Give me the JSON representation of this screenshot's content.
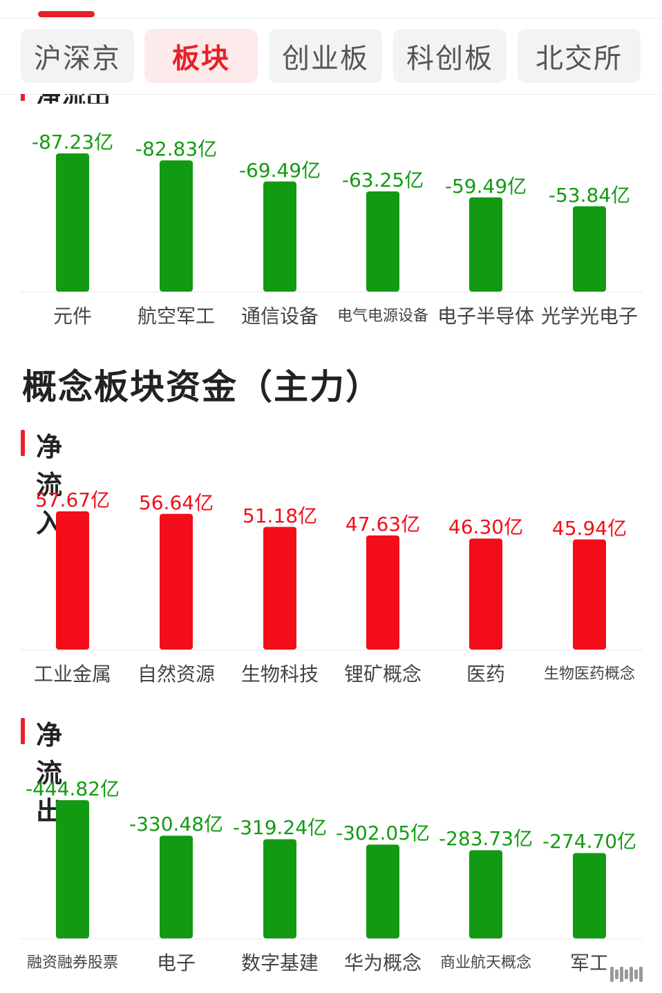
{
  "tabs": [
    {
      "label": "沪深京",
      "active": false
    },
    {
      "label": "板块",
      "active": true
    },
    {
      "label": "创业板",
      "active": false
    },
    {
      "label": "科创板",
      "active": false
    },
    {
      "label": "北交所",
      "active": false
    }
  ],
  "clipped_heading": "净流出",
  "section_title": "概念板块资金（主力）",
  "inflow_heading": "净流入",
  "outflow_heading": "净流出",
  "colors": {
    "inflow": "#f20d18",
    "outflow": "#129a12",
    "accent": "#e8202a"
  },
  "chart_data": [
    {
      "type": "bar",
      "categories": [
        "元件",
        "航空军工",
        "通信设备",
        "电气电源设备",
        "电子半导体",
        "光学光电子"
      ],
      "values": [
        -87.23,
        -82.83,
        -69.49,
        -63.25,
        -59.49,
        -53.84
      ],
      "labels": [
        "-87.23亿",
        "-82.83亿",
        "-69.49亿",
        "-63.25亿",
        "-59.49亿",
        "-53.84亿"
      ],
      "unit": "亿"
    },
    {
      "type": "bar",
      "categories": [
        "工业金属",
        "自然资源",
        "生物科技",
        "锂矿概念",
        "医药",
        "生物医药概念"
      ],
      "values": [
        57.67,
        56.64,
        51.18,
        47.63,
        46.3,
        45.94
      ],
      "labels": [
        "57.67亿",
        "56.64亿",
        "51.18亿",
        "47.63亿",
        "46.30亿",
        "45.94亿"
      ],
      "unit": "亿"
    },
    {
      "type": "bar",
      "categories": [
        "融资融券股票",
        "电子",
        "数字基建",
        "华为概念",
        "商业航天概念",
        "军工"
      ],
      "values": [
        -444.82,
        -330.48,
        -319.24,
        -302.05,
        -283.73,
        -274.7
      ],
      "labels": [
        "-444.82亿",
        "-330.48亿",
        "-319.24亿",
        "-302.05亿",
        "-283.73亿",
        "-274.70亿"
      ],
      "unit": "亿"
    }
  ]
}
